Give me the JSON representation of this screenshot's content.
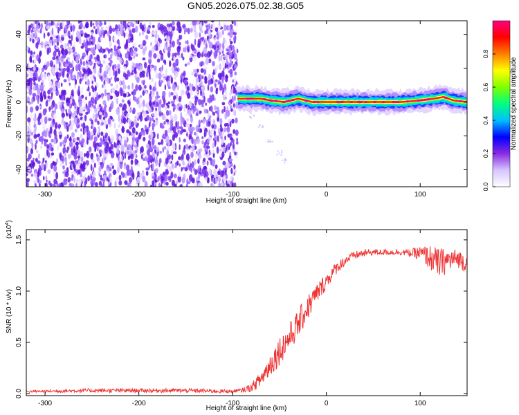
{
  "chart_data": [
    {
      "type": "heatmap",
      "title": "GN05.2026.075.02.38.G05",
      "xlabel": "Height of straight line (km)",
      "ylabel": "Frequency (Hz)",
      "xlim": [
        -320,
        150
      ],
      "ylim": [
        -50,
        48
      ],
      "xticks": [
        -300,
        -200,
        -100,
        0,
        100
      ],
      "yticks": [
        40,
        20,
        0,
        -20,
        -40
      ],
      "colorbar": {
        "label": "Normalized spectral amplitude",
        "range": [
          0,
          1
        ],
        "ticks": [
          "0.0",
          "0.2",
          "0.4",
          "0.6",
          "0.8"
        ],
        "colors": [
          "#ffffff",
          "#d6c4ff",
          "#8a2be2",
          "#0000ff",
          "#00bfff",
          "#00ff7f",
          "#7fff00",
          "#ffff00",
          "#ff7f00",
          "#ff0000",
          "#ff0080"
        ]
      },
      "regions": [
        {
          "name": "noise",
          "x": [
            -320,
            -95
          ],
          "freq": [
            -50,
            48
          ],
          "amplitude": 0.15
        },
        {
          "name": "signal",
          "x": [
            -95,
            150
          ],
          "center_freq": [
            [
              -95,
              2
            ],
            [
              -70,
              2
            ],
            [
              -60,
              1
            ],
            [
              -45,
              0
            ],
            [
              -30,
              2
            ],
            [
              -15,
              0
            ],
            [
              0,
              0
            ],
            [
              40,
              0
            ],
            [
              80,
              0
            ],
            [
              100,
              1
            ],
            [
              115,
              2
            ],
            [
              125,
              3
            ],
            [
              135,
              1
            ],
            [
              150,
              0
            ]
          ],
          "amplitude": 1.0
        }
      ],
      "faint_trace": [
        [
          -95,
          -2
        ],
        [
          -80,
          -8
        ],
        [
          -70,
          -14
        ],
        [
          -60,
          -22
        ],
        [
          -50,
          -30
        ],
        [
          -45,
          -35
        ]
      ]
    },
    {
      "type": "line",
      "title": "",
      "xlabel": "Height of straight line (km)",
      "ylabel": "SNR (10 * v/v)",
      "y_multiplier": "(x10^4)",
      "xlim": [
        -320,
        150
      ],
      "ylim": [
        -0.02,
        1.6
      ],
      "xticks": [
        -300,
        -200,
        -100,
        0,
        100
      ],
      "yticks": [
        "0.0",
        "0.5",
        "1.0",
        "1.5"
      ],
      "series": [
        {
          "color": "#ee3333",
          "x": [
            -320,
            -250,
            -150,
            -100,
            -90,
            -80,
            -70,
            -60,
            -50,
            -40,
            -30,
            -20,
            -10,
            0,
            10,
            20,
            30,
            40,
            50,
            60,
            70,
            80,
            90,
            100,
            110,
            120,
            130,
            140,
            150
          ],
          "y": [
            0.02,
            0.03,
            0.03,
            0.02,
            0.03,
            0.06,
            0.14,
            0.28,
            0.42,
            0.54,
            0.68,
            0.84,
            0.98,
            1.1,
            1.22,
            1.3,
            1.35,
            1.37,
            1.38,
            1.38,
            1.38,
            1.38,
            1.37,
            1.37,
            1.33,
            1.27,
            1.3,
            1.32,
            1.27
          ],
          "noise": [
            0.01,
            0.02,
            0.02,
            0.02,
            0.02,
            0.04,
            0.08,
            0.12,
            0.14,
            0.14,
            0.14,
            0.13,
            0.1,
            0.08,
            0.06,
            0.05,
            0.04,
            0.04,
            0.03,
            0.03,
            0.03,
            0.03,
            0.04,
            0.07,
            0.12,
            0.15,
            0.12,
            0.09,
            0.1
          ]
        }
      ]
    }
  ]
}
